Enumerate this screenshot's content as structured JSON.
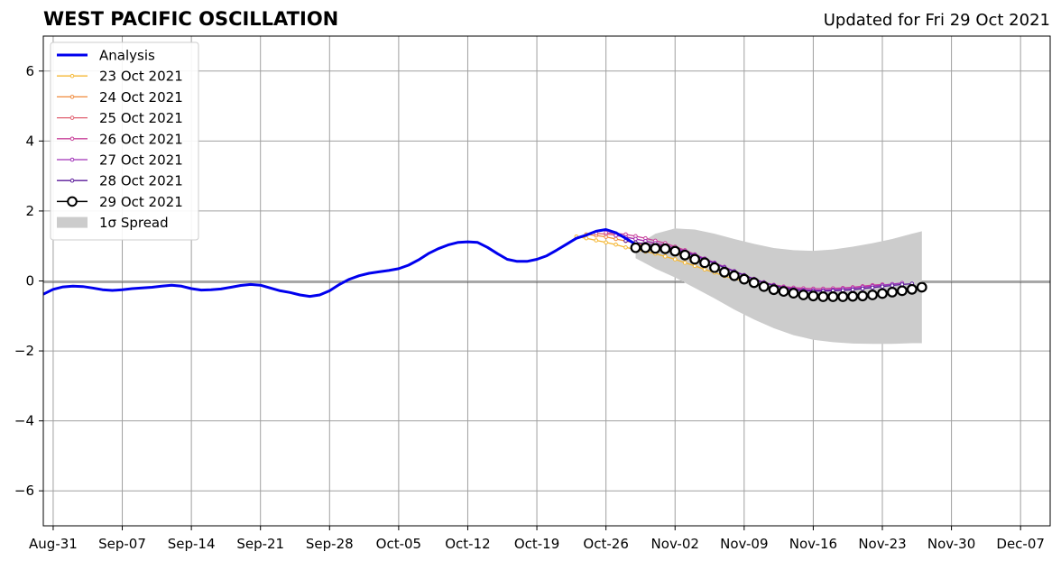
{
  "chart_data": {
    "type": "line",
    "title": "WEST PACIFIC OSCILLATION",
    "subtitle": "Updated for Fri 29 Oct 2021",
    "xlabel": "",
    "ylabel": "",
    "ylim": [
      -7,
      7
    ],
    "xlim": [
      "2021-08-30",
      "2021-12-10"
    ],
    "x_ticks": [
      {
        "date": "2021-08-31",
        "label": "Aug-31"
      },
      {
        "date": "2021-09-07",
        "label": "Sep-07"
      },
      {
        "date": "2021-09-14",
        "label": "Sep-14"
      },
      {
        "date": "2021-09-21",
        "label": "Sep-21"
      },
      {
        "date": "2021-09-28",
        "label": "Sep-28"
      },
      {
        "date": "2021-10-05",
        "label": "Oct-05"
      },
      {
        "date": "2021-10-12",
        "label": "Oct-12"
      },
      {
        "date": "2021-10-19",
        "label": "Oct-19"
      },
      {
        "date": "2021-10-26",
        "label": "Oct-26"
      },
      {
        "date": "2021-11-02",
        "label": "Nov-02"
      },
      {
        "date": "2021-11-09",
        "label": "Nov-09"
      },
      {
        "date": "2021-11-16",
        "label": "Nov-16"
      },
      {
        "date": "2021-11-23",
        "label": "Nov-23"
      },
      {
        "date": "2021-11-30",
        "label": "Nov-30"
      },
      {
        "date": "2021-12-07",
        "label": "Dec-07"
      }
    ],
    "y_ticks": [
      {
        "value": 6,
        "label": "6"
      },
      {
        "value": 4,
        "label": "4"
      },
      {
        "value": 2,
        "label": "2"
      },
      {
        "value": 0,
        "label": "0"
      },
      {
        "value": -2,
        "label": "−2"
      },
      {
        "value": -4,
        "label": "−4"
      },
      {
        "value": -6,
        "label": "−6"
      }
    ],
    "grid": true,
    "legend_position": "top-left",
    "zero_line": 0,
    "analysis": {
      "name": "Analysis",
      "color": "#0000ee",
      "x": [
        "2021-08-30",
        "2021-08-31",
        "2021-09-01",
        "2021-09-02",
        "2021-09-03",
        "2021-09-04",
        "2021-09-05",
        "2021-09-06",
        "2021-09-07",
        "2021-09-08",
        "2021-09-09",
        "2021-09-10",
        "2021-09-11",
        "2021-09-12",
        "2021-09-13",
        "2021-09-14",
        "2021-09-15",
        "2021-09-16",
        "2021-09-17",
        "2021-09-18",
        "2021-09-19",
        "2021-09-20",
        "2021-09-21",
        "2021-09-22",
        "2021-09-23",
        "2021-09-24",
        "2021-09-25",
        "2021-09-26",
        "2021-09-27",
        "2021-09-28",
        "2021-09-29",
        "2021-09-30",
        "2021-10-01",
        "2021-10-02",
        "2021-10-03",
        "2021-10-04",
        "2021-10-05",
        "2021-10-06",
        "2021-10-07",
        "2021-10-08",
        "2021-10-09",
        "2021-10-10",
        "2021-10-11",
        "2021-10-12",
        "2021-10-13",
        "2021-10-14",
        "2021-10-15",
        "2021-10-16",
        "2021-10-17",
        "2021-10-18",
        "2021-10-19",
        "2021-10-20",
        "2021-10-21",
        "2021-10-22",
        "2021-10-23",
        "2021-10-24",
        "2021-10-25",
        "2021-10-26",
        "2021-10-27",
        "2021-10-28",
        "2021-10-29"
      ],
      "y": [
        -0.38,
        -0.24,
        -0.17,
        -0.15,
        -0.16,
        -0.2,
        -0.25,
        -0.27,
        -0.25,
        -0.22,
        -0.2,
        -0.18,
        -0.15,
        -0.12,
        -0.15,
        -0.22,
        -0.26,
        -0.25,
        -0.23,
        -0.18,
        -0.13,
        -0.1,
        -0.12,
        -0.2,
        -0.28,
        -0.33,
        -0.4,
        -0.44,
        -0.4,
        -0.28,
        -0.1,
        0.05,
        0.15,
        0.22,
        0.26,
        0.3,
        0.35,
        0.45,
        0.6,
        0.78,
        0.92,
        1.03,
        1.1,
        1.12,
        1.1,
        0.96,
        0.78,
        0.62,
        0.56,
        0.56,
        0.62,
        0.72,
        0.88,
        1.05,
        1.22,
        1.31,
        1.42,
        1.47,
        1.38,
        1.22,
        1.05
      ]
    },
    "spread": {
      "name": "1σ Spread",
      "color": "#cccccc",
      "x": [
        "2021-10-29",
        "2021-10-31",
        "2021-11-02",
        "2021-11-04",
        "2021-11-06",
        "2021-11-08",
        "2021-11-10",
        "2021-11-12",
        "2021-11-14",
        "2021-11-16",
        "2021-11-18",
        "2021-11-20",
        "2021-11-22",
        "2021-11-24",
        "2021-11-26",
        "2021-11-27"
      ],
      "upper": [
        1.0,
        1.35,
        1.5,
        1.47,
        1.35,
        1.2,
        1.06,
        0.94,
        0.88,
        0.86,
        0.9,
        0.98,
        1.08,
        1.2,
        1.35,
        1.42
      ],
      "lower": [
        0.65,
        0.35,
        0.1,
        -0.2,
        -0.5,
        -0.82,
        -1.1,
        -1.35,
        -1.55,
        -1.68,
        -1.75,
        -1.79,
        -1.8,
        -1.8,
        -1.78,
        -1.78
      ]
    },
    "series": [
      {
        "name": "23 Oct 2021",
        "color": "#f5b733",
        "marker": "small",
        "x": [
          "2021-10-23",
          "2021-10-24",
          "2021-10-25",
          "2021-10-26",
          "2021-10-27",
          "2021-10-28",
          "2021-10-29",
          "2021-10-30",
          "2021-10-31",
          "2021-11-01",
          "2021-11-02",
          "2021-11-03",
          "2021-11-04",
          "2021-11-05",
          "2021-11-06",
          "2021-11-07",
          "2021-11-08",
          "2021-11-09",
          "2021-11-10"
        ],
        "y": [
          1.27,
          1.22,
          1.16,
          1.1,
          1.04,
          0.96,
          0.9,
          0.84,
          0.78,
          0.7,
          0.62,
          0.52,
          0.43,
          0.33,
          0.24,
          0.14,
          0.06,
          0.0,
          -0.05
        ]
      },
      {
        "name": "24 Oct 2021",
        "color": "#f08a3c",
        "marker": "small",
        "x": [
          "2021-10-24",
          "2021-10-25",
          "2021-10-26",
          "2021-10-27",
          "2021-10-28",
          "2021-10-29",
          "2021-10-30",
          "2021-10-31",
          "2021-11-01",
          "2021-11-02",
          "2021-11-03",
          "2021-11-04"
        ],
        "y": [
          1.33,
          1.3,
          1.26,
          1.2,
          1.14,
          1.08,
          1.02,
          0.96,
          0.88,
          0.79,
          0.68,
          0.58
        ]
      },
      {
        "name": "25 Oct 2021",
        "color": "#e06070",
        "marker": "small",
        "x": [
          "2021-10-25",
          "2021-10-26",
          "2021-10-27",
          "2021-10-28",
          "2021-10-29",
          "2021-10-30",
          "2021-10-31",
          "2021-11-01",
          "2021-11-02"
        ],
        "y": [
          1.36,
          1.34,
          1.31,
          1.26,
          1.2,
          1.14,
          1.07,
          0.99,
          0.9
        ]
      },
      {
        "name": "26 Oct 2021",
        "color": "#c8409a",
        "marker": "small",
        "x": [
          "2021-10-26",
          "2021-10-27",
          "2021-10-28",
          "2021-10-29",
          "2021-10-30",
          "2021-10-31",
          "2021-11-01",
          "2021-11-02",
          "2021-11-03",
          "2021-11-04",
          "2021-11-05",
          "2021-11-06",
          "2021-11-07",
          "2021-11-08",
          "2021-11-09",
          "2021-11-10",
          "2021-11-11",
          "2021-11-12",
          "2021-11-13",
          "2021-11-14",
          "2021-11-15",
          "2021-11-16",
          "2021-11-17",
          "2021-11-18",
          "2021-11-19",
          "2021-11-20",
          "2021-11-21",
          "2021-11-22",
          "2021-11-23"
        ],
        "y": [
          1.38,
          1.36,
          1.33,
          1.28,
          1.22,
          1.15,
          1.08,
          0.98,
          0.88,
          0.76,
          0.64,
          0.52,
          0.4,
          0.28,
          0.16,
          0.06,
          -0.04,
          -0.11,
          -0.16,
          -0.19,
          -0.21,
          -0.22,
          -0.22,
          -0.21,
          -0.2,
          -0.18,
          -0.15,
          -0.12,
          -0.1
        ]
      },
      {
        "name": "27 Oct 2021",
        "color": "#a030b8",
        "marker": "small",
        "x": [
          "2021-10-27",
          "2021-10-28",
          "2021-10-29",
          "2021-10-30",
          "2021-10-31",
          "2021-11-01",
          "2021-11-02",
          "2021-11-03",
          "2021-11-04",
          "2021-11-05",
          "2021-11-06",
          "2021-11-07",
          "2021-11-08",
          "2021-11-09",
          "2021-11-10",
          "2021-11-11",
          "2021-11-12",
          "2021-11-13",
          "2021-11-14",
          "2021-11-15",
          "2021-11-16",
          "2021-11-17",
          "2021-11-18",
          "2021-11-19",
          "2021-11-20",
          "2021-11-21",
          "2021-11-22",
          "2021-11-23",
          "2021-11-24",
          "2021-11-25"
        ],
        "y": [
          1.3,
          1.25,
          1.2,
          1.14,
          1.08,
          1.02,
          0.94,
          0.85,
          0.75,
          0.64,
          0.52,
          0.4,
          0.28,
          0.17,
          0.06,
          -0.04,
          -0.12,
          -0.18,
          -0.22,
          -0.25,
          -0.26,
          -0.26,
          -0.25,
          -0.23,
          -0.21,
          -0.18,
          -0.15,
          -0.12,
          -0.09,
          -0.06
        ]
      },
      {
        "name": "28 Oct 2021",
        "color": "#5a1a9a",
        "marker": "small",
        "x": [
          "2021-10-28",
          "2021-10-29",
          "2021-10-30",
          "2021-10-31",
          "2021-11-01",
          "2021-11-02",
          "2021-11-03",
          "2021-11-04",
          "2021-11-05",
          "2021-11-06",
          "2021-11-07",
          "2021-11-08",
          "2021-11-09",
          "2021-11-10",
          "2021-11-11",
          "2021-11-12",
          "2021-11-13",
          "2021-11-14",
          "2021-11-15",
          "2021-11-16",
          "2021-11-17",
          "2021-11-18",
          "2021-11-19",
          "2021-11-20",
          "2021-11-21",
          "2021-11-22",
          "2021-11-23",
          "2021-11-24",
          "2021-11-25",
          "2021-11-26"
        ],
        "y": [
          1.15,
          1.1,
          1.06,
          1.02,
          0.97,
          0.9,
          0.82,
          0.72,
          0.61,
          0.5,
          0.38,
          0.27,
          0.16,
          0.05,
          -0.05,
          -0.13,
          -0.2,
          -0.25,
          -0.28,
          -0.29,
          -0.29,
          -0.28,
          -0.27,
          -0.25,
          -0.22,
          -0.19,
          -0.16,
          -0.13,
          -0.1,
          -0.08
        ]
      },
      {
        "name": "29 Oct 2021",
        "color": "#000000",
        "marker": "circle",
        "x": [
          "2021-10-29",
          "2021-10-30",
          "2021-10-31",
          "2021-11-01",
          "2021-11-02",
          "2021-11-03",
          "2021-11-04",
          "2021-11-05",
          "2021-11-06",
          "2021-11-07",
          "2021-11-08",
          "2021-11-09",
          "2021-11-10",
          "2021-11-11",
          "2021-11-12",
          "2021-11-13",
          "2021-11-14",
          "2021-11-15",
          "2021-11-16",
          "2021-11-17",
          "2021-11-18",
          "2021-11-19",
          "2021-11-20",
          "2021-11-21",
          "2021-11-22",
          "2021-11-23",
          "2021-11-24",
          "2021-11-25",
          "2021-11-26",
          "2021-11-27"
        ],
        "y": [
          0.95,
          0.95,
          0.93,
          0.92,
          0.85,
          0.74,
          0.62,
          0.52,
          0.38,
          0.25,
          0.15,
          0.05,
          -0.05,
          -0.16,
          -0.25,
          -0.3,
          -0.35,
          -0.4,
          -0.43,
          -0.45,
          -0.45,
          -0.45,
          -0.44,
          -0.43,
          -0.4,
          -0.36,
          -0.32,
          -0.28,
          -0.24,
          -0.18
        ]
      }
    ]
  }
}
